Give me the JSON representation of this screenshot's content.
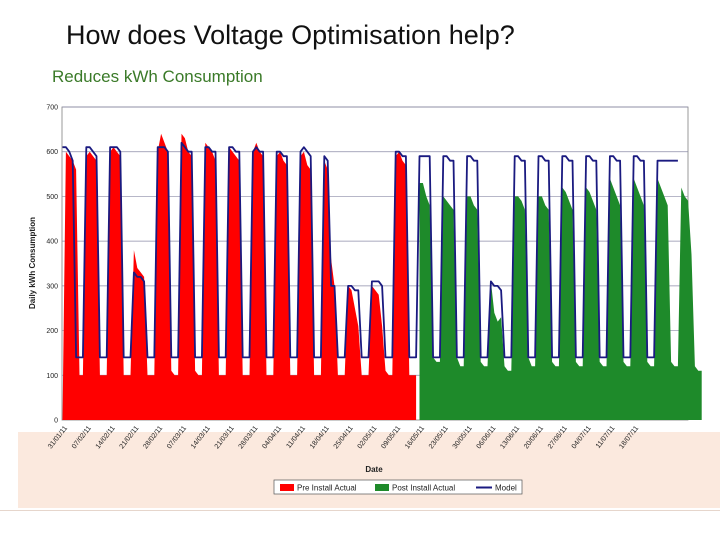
{
  "slide": {
    "title": "How does Voltage Optimisation help?",
    "subtitle": "Reduces kWh Consumption"
  },
  "colors": {
    "pre": "#ff0000",
    "post": "#1e8a2a",
    "model": "#1a1a80",
    "grid": "#8c8ca8",
    "title": "#111111",
    "subtitle": "#3a7a28",
    "band": "#fbe9de"
  },
  "chart_data": {
    "type": "area",
    "title": "",
    "xlabel": "Date",
    "ylabel": "Daily kWh Consumption",
    "ylim": [
      0,
      700
    ],
    "yticks": [
      0,
      100,
      200,
      300,
      400,
      500,
      600,
      700
    ],
    "grid": true,
    "legend_position": "bottom",
    "x_tick_labels": [
      "31/01/11",
      "07/02/11",
      "14/02/11",
      "21/02/11",
      "28/02/11",
      "07/03/11",
      "14/03/11",
      "21/03/11",
      "28/03/11",
      "04/04/11",
      "11/04/11",
      "18/04/11",
      "25/04/11",
      "02/05/11",
      "09/05/11",
      "16/05/11",
      "23/05/11",
      "30/05/11",
      "06/06/11",
      "13/06/11",
      "20/06/11",
      "27/06/11",
      "04/07/11",
      "11/07/11",
      "18/07/11"
    ],
    "days_per_tick": 7,
    "pre_install_days": 105,
    "series": [
      {
        "name": "Pre Install Actual",
        "kind": "area",
        "weeks": [
          [
            0,
            600,
            590,
            580,
            560,
            100,
            100
          ],
          [
            590,
            600,
            590,
            580,
            100,
            100,
            100
          ],
          [
            600,
            610,
            600,
            590,
            100,
            100,
            100
          ],
          [
            380,
            340,
            330,
            320,
            100,
            100,
            100
          ],
          [
            600,
            640,
            620,
            600,
            110,
            100,
            100
          ],
          [
            640,
            630,
            600,
            590,
            110,
            100,
            100
          ],
          [
            620,
            610,
            600,
            580,
            100,
            100,
            100
          ],
          [
            610,
            600,
            590,
            580,
            100,
            100,
            100
          ],
          [
            600,
            620,
            600,
            590,
            100,
            100,
            100
          ],
          [
            590,
            600,
            580,
            570,
            100,
            100,
            100
          ],
          [
            590,
            600,
            570,
            560,
            100,
            100,
            100
          ],
          [
            580,
            560,
            360,
            300,
            100,
            100,
            100
          ],
          [
            300,
            290,
            250,
            210,
            100,
            100,
            100
          ],
          [
            300,
            290,
            280,
            210,
            110,
            100,
            100
          ],
          [
            590,
            600,
            580,
            570,
            100,
            100,
            100
          ]
        ]
      },
      {
        "name": "Post Install Actual",
        "kind": "area",
        "weeks": [
          [
            530,
            530,
            500,
            480,
            140,
            130,
            130
          ],
          [
            500,
            490,
            480,
            470,
            140,
            120,
            120
          ],
          [
            500,
            500,
            480,
            470,
            130,
            120,
            120
          ],
          [
            310,
            240,
            220,
            230,
            120,
            110,
            110
          ],
          [
            500,
            500,
            490,
            470,
            140,
            120,
            120
          ],
          [
            500,
            500,
            480,
            470,
            130,
            120,
            120
          ],
          [
            520,
            510,
            490,
            470,
            130,
            120,
            120
          ],
          [
            520,
            510,
            490,
            470,
            130,
            120,
            120
          ],
          [
            540,
            520,
            500,
            480,
            130,
            120,
            120
          ],
          [
            540,
            520,
            500,
            480,
            130,
            120,
            120
          ],
          [
            540,
            520,
            500,
            480,
            130,
            120,
            120
          ],
          [
            520,
            500,
            490,
            370,
            120,
            110,
            110
          ]
        ]
      },
      {
        "name": "Model",
        "kind": "line",
        "weeks": [
          [
            610,
            610,
            600,
            580,
            140,
            140,
            140
          ],
          [
            610,
            610,
            600,
            590,
            140,
            140,
            140
          ],
          [
            610,
            610,
            610,
            600,
            140,
            140,
            140
          ],
          [
            330,
            320,
            320,
            310,
            140,
            140,
            140
          ],
          [
            610,
            610,
            610,
            600,
            140,
            140,
            140
          ],
          [
            620,
            610,
            600,
            600,
            140,
            140,
            140
          ],
          [
            610,
            610,
            600,
            600,
            140,
            140,
            140
          ],
          [
            610,
            610,
            600,
            600,
            140,
            140,
            140
          ],
          [
            600,
            610,
            600,
            600,
            140,
            140,
            140
          ],
          [
            600,
            600,
            590,
            590,
            140,
            140,
            140
          ],
          [
            600,
            610,
            600,
            590,
            140,
            140,
            140
          ],
          [
            590,
            580,
            300,
            300,
            140,
            140,
            140
          ],
          [
            300,
            300,
            290,
            290,
            140,
            140,
            140
          ],
          [
            310,
            310,
            310,
            300,
            140,
            140,
            140
          ],
          [
            600,
            600,
            590,
            590,
            140,
            140,
            140
          ],
          [
            590,
            590,
            590,
            590,
            140,
            140,
            140
          ],
          [
            590,
            590,
            580,
            580,
            140,
            140,
            140
          ],
          [
            590,
            590,
            580,
            580,
            140,
            140,
            140
          ],
          [
            310,
            300,
            300,
            290,
            140,
            140,
            140
          ],
          [
            590,
            590,
            580,
            580,
            140,
            140,
            140
          ],
          [
            590,
            590,
            580,
            580,
            140,
            140,
            140
          ],
          [
            590,
            590,
            580,
            580,
            140,
            140,
            140
          ],
          [
            590,
            590,
            580,
            580,
            140,
            140,
            140
          ],
          [
            590,
            590,
            580,
            580,
            140,
            140,
            140
          ],
          [
            590,
            590,
            580,
            580,
            140,
            140,
            140
          ],
          [
            580,
            580,
            580,
            580,
            580,
            580,
            580
          ]
        ]
      }
    ]
  }
}
